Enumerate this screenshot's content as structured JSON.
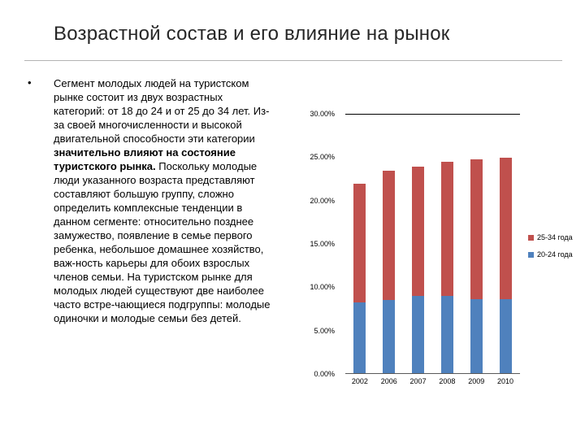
{
  "slide": {
    "title": "Возрастной состав и его влияние на рынок",
    "bullet": {
      "marker": "•",
      "text_before_bold": "Сегмент молодых людей на туристском рынке состоит из двух возрастных категорий: от 18 до 24 и от 25 до 34 лет. Из-за своей многочисленности и высокой двигательной способности эти категории ",
      "text_bold": "значительно влияют на состояние туристского рынка.",
      "text_after_bold": " Поскольку молодые люди указанного возраста представляют составляют большую группу, сложно определить комплексные тенденции в данном сегменте: относительно позднее замужество, появление в семье первого ребенка, небольшое домашнее хозяйство, важ-ность карьеры для обоих взрослых членов семьи. На туристском рынке для молодых людей существуют две наиболее часто встре-чающиеся подгруппы: молодые одиночки и молодые семьи без детей."
    }
  },
  "chart_data": {
    "type": "bar",
    "stacked": true,
    "title": "",
    "xlabel": "",
    "ylabel": "",
    "categories": [
      "2002",
      "2006",
      "2007",
      "2008",
      "2009",
      "2010"
    ],
    "series": [
      {
        "name": "20-24 года",
        "color": "#4f81bd",
        "values": [
          8.2,
          8.5,
          9.0,
          9.0,
          8.6,
          8.6
        ]
      },
      {
        "name": "25-34 года",
        "color": "#c0504d",
        "values": [
          13.8,
          15.0,
          15.0,
          15.5,
          16.2,
          16.4
        ]
      }
    ],
    "y_ticks": [
      "30.00%",
      "25.00%",
      "20.00%",
      "15.00%",
      "10.00%",
      "5.00%",
      "0.00%"
    ],
    "ylim": [
      0,
      30
    ],
    "grid": false,
    "legend_position": "right",
    "legend": [
      {
        "label": "25-34 года",
        "color": "#c0504d"
      },
      {
        "label": "20-24 года",
        "color": "#4f81bd"
      }
    ]
  }
}
